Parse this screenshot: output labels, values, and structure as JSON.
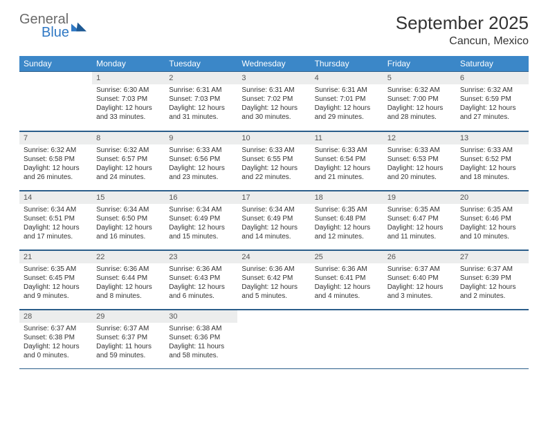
{
  "logo": {
    "word1": "General",
    "word2": "Blue"
  },
  "title": "September 2025",
  "location": "Cancun, Mexico",
  "colors": {
    "header_bg": "#3b87c8",
    "header_text": "#ffffff",
    "daynum_bg": "#eceded",
    "row_border": "#2a5d8a",
    "logo_gray": "#6a6a6a",
    "logo_blue": "#2f78c4"
  },
  "weekdays": [
    "Sunday",
    "Monday",
    "Tuesday",
    "Wednesday",
    "Thursday",
    "Friday",
    "Saturday"
  ],
  "weeks": [
    [
      null,
      {
        "d": "1",
        "sr": "6:30 AM",
        "ss": "7:03 PM",
        "dl": "12 hours and 33 minutes."
      },
      {
        "d": "2",
        "sr": "6:31 AM",
        "ss": "7:03 PM",
        "dl": "12 hours and 31 minutes."
      },
      {
        "d": "3",
        "sr": "6:31 AM",
        "ss": "7:02 PM",
        "dl": "12 hours and 30 minutes."
      },
      {
        "d": "4",
        "sr": "6:31 AM",
        "ss": "7:01 PM",
        "dl": "12 hours and 29 minutes."
      },
      {
        "d": "5",
        "sr": "6:32 AM",
        "ss": "7:00 PM",
        "dl": "12 hours and 28 minutes."
      },
      {
        "d": "6",
        "sr": "6:32 AM",
        "ss": "6:59 PM",
        "dl": "12 hours and 27 minutes."
      }
    ],
    [
      {
        "d": "7",
        "sr": "6:32 AM",
        "ss": "6:58 PM",
        "dl": "12 hours and 26 minutes."
      },
      {
        "d": "8",
        "sr": "6:32 AM",
        "ss": "6:57 PM",
        "dl": "12 hours and 24 minutes."
      },
      {
        "d": "9",
        "sr": "6:33 AM",
        "ss": "6:56 PM",
        "dl": "12 hours and 23 minutes."
      },
      {
        "d": "10",
        "sr": "6:33 AM",
        "ss": "6:55 PM",
        "dl": "12 hours and 22 minutes."
      },
      {
        "d": "11",
        "sr": "6:33 AM",
        "ss": "6:54 PM",
        "dl": "12 hours and 21 minutes."
      },
      {
        "d": "12",
        "sr": "6:33 AM",
        "ss": "6:53 PM",
        "dl": "12 hours and 20 minutes."
      },
      {
        "d": "13",
        "sr": "6:33 AM",
        "ss": "6:52 PM",
        "dl": "12 hours and 18 minutes."
      }
    ],
    [
      {
        "d": "14",
        "sr": "6:34 AM",
        "ss": "6:51 PM",
        "dl": "12 hours and 17 minutes."
      },
      {
        "d": "15",
        "sr": "6:34 AM",
        "ss": "6:50 PM",
        "dl": "12 hours and 16 minutes."
      },
      {
        "d": "16",
        "sr": "6:34 AM",
        "ss": "6:49 PM",
        "dl": "12 hours and 15 minutes."
      },
      {
        "d": "17",
        "sr": "6:34 AM",
        "ss": "6:49 PM",
        "dl": "12 hours and 14 minutes."
      },
      {
        "d": "18",
        "sr": "6:35 AM",
        "ss": "6:48 PM",
        "dl": "12 hours and 12 minutes."
      },
      {
        "d": "19",
        "sr": "6:35 AM",
        "ss": "6:47 PM",
        "dl": "12 hours and 11 minutes."
      },
      {
        "d": "20",
        "sr": "6:35 AM",
        "ss": "6:46 PM",
        "dl": "12 hours and 10 minutes."
      }
    ],
    [
      {
        "d": "21",
        "sr": "6:35 AM",
        "ss": "6:45 PM",
        "dl": "12 hours and 9 minutes."
      },
      {
        "d": "22",
        "sr": "6:36 AM",
        "ss": "6:44 PM",
        "dl": "12 hours and 8 minutes."
      },
      {
        "d": "23",
        "sr": "6:36 AM",
        "ss": "6:43 PM",
        "dl": "12 hours and 6 minutes."
      },
      {
        "d": "24",
        "sr": "6:36 AM",
        "ss": "6:42 PM",
        "dl": "12 hours and 5 minutes."
      },
      {
        "d": "25",
        "sr": "6:36 AM",
        "ss": "6:41 PM",
        "dl": "12 hours and 4 minutes."
      },
      {
        "d": "26",
        "sr": "6:37 AM",
        "ss": "6:40 PM",
        "dl": "12 hours and 3 minutes."
      },
      {
        "d": "27",
        "sr": "6:37 AM",
        "ss": "6:39 PM",
        "dl": "12 hours and 2 minutes."
      }
    ],
    [
      {
        "d": "28",
        "sr": "6:37 AM",
        "ss": "6:38 PM",
        "dl": "12 hours and 0 minutes."
      },
      {
        "d": "29",
        "sr": "6:37 AM",
        "ss": "6:37 PM",
        "dl": "11 hours and 59 minutes."
      },
      {
        "d": "30",
        "sr": "6:38 AM",
        "ss": "6:36 PM",
        "dl": "11 hours and 58 minutes."
      },
      null,
      null,
      null,
      null
    ]
  ],
  "labels": {
    "sunrise": "Sunrise:",
    "sunset": "Sunset:",
    "daylight": "Daylight:"
  }
}
